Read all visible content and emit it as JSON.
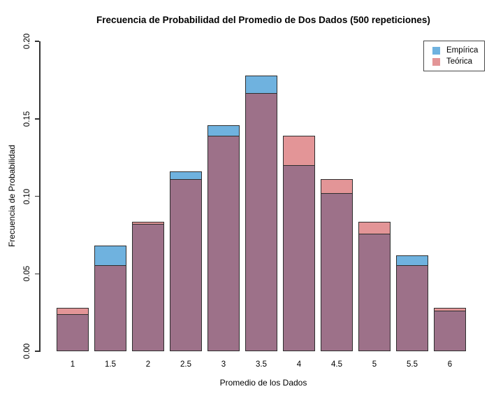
{
  "title": "Frecuencia de Probabilidad del Promedio de Dos Dados (500 repeticiones)",
  "chart_data": {
    "type": "bar",
    "style": "overlaid-transparent-barplot",
    "title": "Frecuencia de Probabilidad del Promedio de Dos Dados (500 repeticiones)",
    "xlabel": "Promedio de los Dados",
    "ylabel": "Frecuencia de Probabilidad",
    "categories": [
      "1",
      "1.5",
      "2",
      "2.5",
      "3",
      "3.5",
      "4",
      "4.5",
      "5",
      "5.5",
      "6"
    ],
    "series": [
      {
        "name": "Empírica",
        "color": "#6FB2DF",
        "values": [
          0.024,
          0.068,
          0.082,
          0.116,
          0.146,
          0.178,
          0.12,
          0.102,
          0.076,
          0.062,
          0.026
        ]
      },
      {
        "name": "Teórica",
        "color": "#E39597",
        "values": [
          0.0278,
          0.0556,
          0.0833,
          0.1111,
          0.1389,
          0.1667,
          0.1389,
          0.1111,
          0.0833,
          0.0556,
          0.0278
        ]
      }
    ],
    "overlap_color": "#9D7189",
    "bar_border_color": "#2E2E2E",
    "ylim": [
      0,
      0.2
    ],
    "y_ticks": [
      "0.00",
      "0.05",
      "0.10",
      "0.15",
      "0.20"
    ],
    "grid": false,
    "legend_position": "top-right"
  }
}
